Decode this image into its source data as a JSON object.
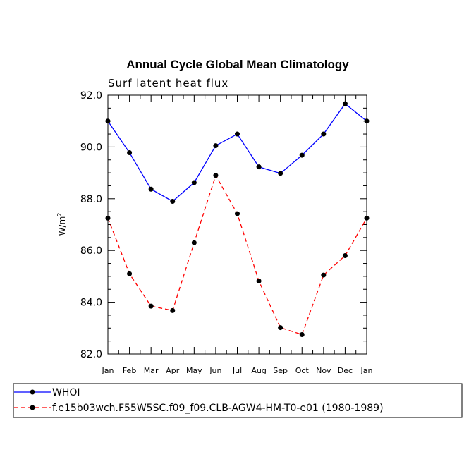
{
  "chart_data": {
    "type": "line",
    "title": "Annual Cycle Global Mean Climatology",
    "subtitle": "Surf latent heat flux",
    "xlabel": "",
    "ylabel": "W/m",
    "ylabel_sup": "2",
    "categories": [
      "Jan",
      "Feb",
      "Mar",
      "Apr",
      "May",
      "Jun",
      "Jul",
      "Aug",
      "Sep",
      "Oct",
      "Nov",
      "Dec",
      "Jan"
    ],
    "ylim": [
      82.0,
      92.0
    ],
    "yticks": [
      "82.0",
      "84.0",
      "86.0",
      "88.0",
      "90.0",
      "92.0"
    ],
    "grid": false,
    "legend_position": "bottom",
    "series": [
      {
        "name": "WHOI",
        "color": "#0000ff",
        "style": "solid",
        "values": [
          91.0,
          89.78,
          88.37,
          87.9,
          88.62,
          90.05,
          90.5,
          89.23,
          88.98,
          89.68,
          90.5,
          91.67,
          91.0
        ]
      },
      {
        "name": "f.e15b03wch.F55W5SC.f09_f09.CLB-AGW4-HM-T0-e01 (1980-1989)",
        "color": "#ff0000",
        "style": "dashed",
        "values": [
          87.25,
          85.1,
          83.85,
          83.68,
          86.3,
          88.9,
          87.42,
          84.82,
          83.02,
          82.75,
          85.05,
          85.8,
          87.25
        ]
      }
    ]
  }
}
